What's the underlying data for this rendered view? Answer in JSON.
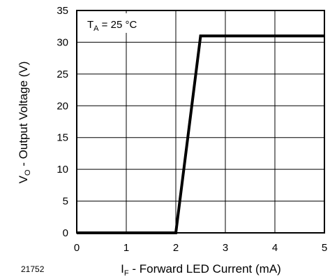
{
  "chart_data": {
    "type": "line",
    "title": "",
    "xlabel": {
      "main": "I",
      "sub": "F",
      "rest": " - Forward LED Current (mA)"
    },
    "ylabel": {
      "main": "V",
      "sub": "O",
      "rest": " - Output Voltage (V)"
    },
    "xlim": [
      0,
      5
    ],
    "ylim": [
      0,
      35
    ],
    "x_ticks": [
      "0",
      "1",
      "2",
      "3",
      "4",
      "5"
    ],
    "y_ticks": [
      "0",
      "5",
      "10",
      "15",
      "20",
      "25",
      "30",
      "35"
    ],
    "grid": true,
    "annotation": {
      "main": "T",
      "sub": "A",
      "rest": " = 25 °C"
    },
    "figure_id": "21752",
    "series": [
      {
        "x": [
          0,
          2.0,
          2.5,
          5
        ],
        "y": [
          0,
          0,
          31,
          31
        ]
      }
    ]
  }
}
